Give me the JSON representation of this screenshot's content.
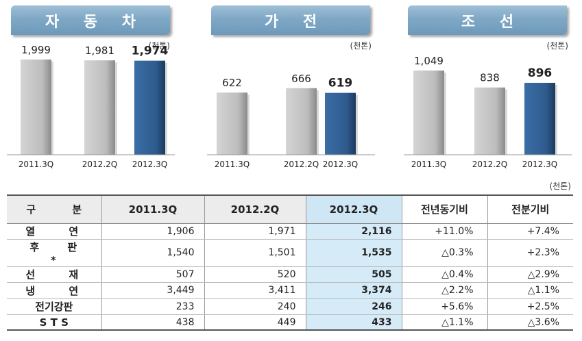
{
  "chart_data": [
    {
      "type": "bar",
      "title": "자 동 차",
      "unit": "(천톤)",
      "categories": [
        "2011.3Q",
        "2012.2Q",
        "2012.3Q"
      ],
      "values": [
        1999,
        1981,
        1974
      ],
      "value_labels": [
        "1,999",
        "1,981",
        "1,974"
      ],
      "colors": [
        "#c0c0c0",
        "#c0c0c0",
        "#2e5b8e"
      ],
      "ylim": [
        0,
        2140
      ]
    },
    {
      "type": "bar",
      "title": "가 전",
      "unit": "(천톤)",
      "categories": [
        "2011.3Q",
        "2012.2Q",
        "2012.3Q"
      ],
      "values": [
        622,
        666,
        619
      ],
      "value_labels": [
        "622",
        "666",
        "619"
      ],
      "colors": [
        "#c0c0c0",
        "#c0c0c0",
        "#2e5b8e"
      ],
      "ylim": [
        0,
        1020
      ]
    },
    {
      "type": "bar",
      "title": "조 선",
      "unit": "(천톤)",
      "categories": [
        "2011.3Q",
        "2012.2Q",
        "2012.3Q"
      ],
      "values": [
        1049,
        838,
        896
      ],
      "value_labels": [
        "1,049",
        "838",
        "896"
      ],
      "colors": [
        "#c0c0c0",
        "#c0c0c0",
        "#2e5b8e"
      ],
      "ylim": [
        0,
        1270
      ]
    }
  ],
  "table": {
    "unit": "(천톤)",
    "headers": [
      "구 분",
      "2011.3Q",
      "2012.2Q",
      "2012.3Q",
      "전년동기비",
      "전분기비"
    ],
    "rows": [
      [
        "열 연",
        "1,906",
        "1,971",
        "2,116",
        "+11.0%",
        "+7.4%"
      ],
      [
        "후 판*",
        "1,540",
        "1,501",
        "1,535",
        "△0.3%",
        "+2.3%"
      ],
      [
        "선 재",
        "507",
        "520",
        "505",
        "△0.4%",
        "△2.9%"
      ],
      [
        "냉 연",
        "3,449",
        "3,411",
        "3,374",
        "△2.2%",
        "△1.1%"
      ],
      [
        "전기강판",
        "233",
        "240",
        "246",
        "+5.6%",
        "+2.5%"
      ],
      [
        "S T S",
        "438",
        "449",
        "433",
        "△1.1%",
        "△3.6%"
      ]
    ]
  }
}
